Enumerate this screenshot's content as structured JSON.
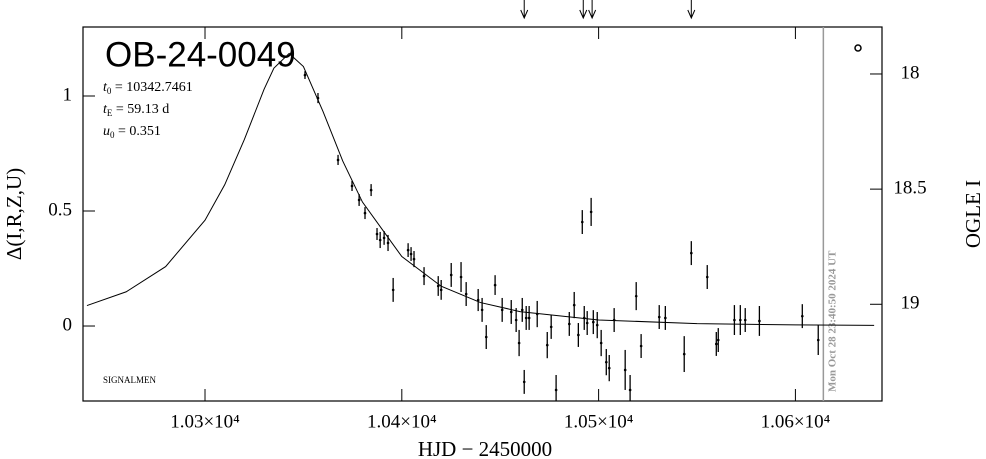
{
  "chart_data": {
    "type": "scatter",
    "title": "OB-24-0049",
    "params": [
      {
        "symbol": "t",
        "sub": "0",
        "text": " = 10342.7461"
      },
      {
        "symbol": "t",
        "sub": "E",
        "text": " = 59.13 d"
      },
      {
        "symbol": "u",
        "sub": "0",
        "text": " = 0.351"
      }
    ],
    "corner_note": "SIGNALMEN",
    "date_note": "Mon Oct 28 23:40:50 2024 UT",
    "xlabel": "HJD − 2450000",
    "ylabel": "Δ(I,R,Z,U)",
    "y2label": "OGLE I",
    "xlim": [
      10238,
      10644
    ],
    "xticks": [
      {
        "value": 10300,
        "label": "1.03×10⁴"
      },
      {
        "value": 10400,
        "label": "1.04×10⁴"
      },
      {
        "value": 10500,
        "label": "1.05×10⁴"
      },
      {
        "value": 10600,
        "label": "1.06×10⁴"
      }
    ],
    "ylim": [
      -0.326,
      1.3
    ],
    "yticks": [
      0,
      0.5,
      1
    ],
    "y2lim": [
      19.42,
      17.796
    ],
    "y2ticks": [
      18,
      18.5,
      19
    ],
    "arrows_x": [
      10462.2,
      10492.2,
      10496.7,
      10547.1
    ],
    "now_x": 10614.2,
    "series": [
      {
        "color": "#000000",
        "x": [
          10350.8,
          10357.4,
          10367.6,
          10374.7,
          10378.3,
          10381.3,
          10384.4,
          10387.4,
          10389.0,
          10391.0,
          10393.0,
          10395.6,
          10403.2,
          10404.7,
          10406.2,
          10411.3,
          10418.5,
          10420.0,
          10425.1,
          10430.1,
          10432.7,
          10438.8,
          10440.8,
          10442.9,
          10447.4,
          10451.0,
          10455.6,
          10458.1,
          10459.6,
          10461.2,
          10463.2,
          10464.7,
          10468.8,
          10473.9,
          10475.9,
          10478.4,
          10462.2,
          10485.1,
          10487.6,
          10489.7,
          10491.7,
          10492.7,
          10494.2,
          10496.2,
          10497.3,
          10499.3,
          10501.3,
          10503.9,
          10505.4,
          10507.9,
          10513.5,
          10516.0,
          10519.1,
          10521.6,
          10530.8,
          10533.9,
          10543.5,
          10547.1,
          10555.2,
          10559.8,
          10560.8,
          10569.0,
          10572.0,
          10574.5,
          10581.7,
          10603.5,
          10611.6
        ],
        "values": [
          1.091,
          0.991,
          0.722,
          0.609,
          0.548,
          0.491,
          0.591,
          0.4,
          0.374,
          0.383,
          0.361,
          0.157,
          0.33,
          0.313,
          0.291,
          0.217,
          0.174,
          0.157,
          0.222,
          0.213,
          0.139,
          0.113,
          0.07,
          -0.048,
          0.178,
          0.07,
          0.061,
          0.026,
          -0.074,
          0.07,
          0.035,
          0.035,
          0.052,
          -0.083,
          -0.004,
          -0.278,
          -0.243,
          0.009,
          0.091,
          -0.039,
          0.452,
          0.035,
          0.013,
          0.496,
          0.017,
          0.004,
          -0.074,
          -0.157,
          -0.183,
          0.026,
          -0.191,
          -0.278,
          0.13,
          -0.087,
          0.039,
          0.035,
          -0.122,
          0.317,
          0.213,
          -0.078,
          -0.061,
          0.026,
          0.026,
          0.026,
          0.022,
          0.043,
          -0.061
        ],
        "errors": [
          0.017,
          0.022,
          0.022,
          0.022,
          0.026,
          0.026,
          0.026,
          0.026,
          0.035,
          0.03,
          0.035,
          0.052,
          0.03,
          0.03,
          0.035,
          0.039,
          0.043,
          0.043,
          0.052,
          0.065,
          0.052,
          0.048,
          0.052,
          0.052,
          0.043,
          0.052,
          0.052,
          0.052,
          0.057,
          0.052,
          0.052,
          0.052,
          0.057,
          0.057,
          0.052,
          0.065,
          0.052,
          0.052,
          0.057,
          0.052,
          0.052,
          0.052,
          0.052,
          0.061,
          0.052,
          0.057,
          0.057,
          0.057,
          0.057,
          0.052,
          0.087,
          0.065,
          0.061,
          0.052,
          0.052,
          0.052,
          0.078,
          0.052,
          0.052,
          0.052,
          0.052,
          0.065,
          0.065,
          0.052,
          0.065,
          0.052,
          0.065
        ]
      }
    ],
    "model": {
      "color": "#000000",
      "x": [
        10240,
        10260,
        10280,
        10300,
        10310,
        10320,
        10330,
        10335,
        10342.75,
        10350,
        10360,
        10370,
        10380,
        10400,
        10420,
        10440,
        10460,
        10500,
        10550,
        10600,
        10640
      ],
      "values": [
        0.0888,
        0.149,
        0.2585,
        0.46,
        0.614,
        0.811,
        1.029,
        1.121,
        1.185,
        1.128,
        0.932,
        0.717,
        0.539,
        0.302,
        0.173,
        0.102,
        0.0628,
        0.0263,
        0.0105,
        0.0049,
        0.0029
      ]
    }
  }
}
